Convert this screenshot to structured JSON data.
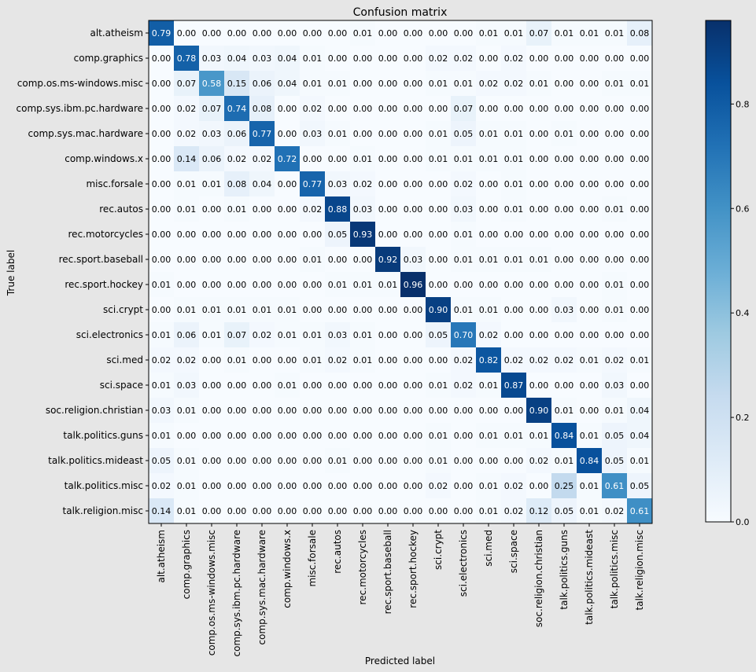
{
  "chart_data": {
    "type": "heatmap",
    "title": "Confusion matrix",
    "xlabel": "Predicted label",
    "ylabel": "True label",
    "labels": [
      "alt.atheism",
      "comp.graphics",
      "comp.os.ms-windows.misc",
      "comp.sys.ibm.pc.hardware",
      "comp.sys.mac.hardware",
      "comp.windows.x",
      "misc.forsale",
      "rec.autos",
      "rec.motorcycles",
      "rec.sport.baseball",
      "rec.sport.hockey",
      "sci.crypt",
      "sci.electronics",
      "sci.med",
      "sci.space",
      "soc.religion.christian",
      "talk.politics.guns",
      "talk.politics.mideast",
      "talk.politics.misc",
      "talk.religion.misc"
    ],
    "matrix": [
      [
        0.79,
        0.0,
        0.0,
        0.0,
        0.0,
        0.0,
        0.0,
        0.0,
        0.01,
        0.0,
        0.0,
        0.0,
        0.0,
        0.01,
        0.01,
        0.07,
        0.01,
        0.01,
        0.01,
        0.08
      ],
      [
        0.0,
        0.78,
        0.03,
        0.04,
        0.03,
        0.04,
        0.01,
        0.0,
        0.0,
        0.0,
        0.0,
        0.02,
        0.02,
        0.0,
        0.02,
        0.0,
        0.0,
        0.0,
        0.0,
        0.0
      ],
      [
        0.0,
        0.07,
        0.58,
        0.15,
        0.06,
        0.04,
        0.01,
        0.01,
        0.0,
        0.0,
        0.0,
        0.01,
        0.01,
        0.02,
        0.02,
        0.01,
        0.0,
        0.0,
        0.01,
        0.01
      ],
      [
        0.0,
        0.02,
        0.07,
        0.74,
        0.08,
        0.0,
        0.02,
        0.0,
        0.0,
        0.0,
        0.0,
        0.0,
        0.07,
        0.0,
        0.0,
        0.0,
        0.0,
        0.0,
        0.0,
        0.0
      ],
      [
        0.0,
        0.02,
        0.03,
        0.06,
        0.77,
        0.0,
        0.03,
        0.01,
        0.0,
        0.0,
        0.0,
        0.01,
        0.05,
        0.01,
        0.01,
        0.0,
        0.01,
        0.0,
        0.0,
        0.0
      ],
      [
        0.0,
        0.14,
        0.06,
        0.02,
        0.02,
        0.72,
        0.0,
        0.0,
        0.01,
        0.0,
        0.0,
        0.01,
        0.01,
        0.01,
        0.01,
        0.0,
        0.0,
        0.0,
        0.0,
        0.0
      ],
      [
        0.0,
        0.01,
        0.01,
        0.08,
        0.04,
        0.0,
        0.77,
        0.03,
        0.02,
        0.0,
        0.0,
        0.0,
        0.02,
        0.0,
        0.01,
        0.0,
        0.0,
        0.0,
        0.0,
        0.0
      ],
      [
        0.0,
        0.01,
        0.0,
        0.01,
        0.0,
        0.0,
        0.02,
        0.88,
        0.03,
        0.0,
        0.0,
        0.0,
        0.03,
        0.0,
        0.01,
        0.0,
        0.0,
        0.0,
        0.01,
        0.0
      ],
      [
        0.0,
        0.0,
        0.0,
        0.0,
        0.0,
        0.0,
        0.0,
        0.05,
        0.93,
        0.0,
        0.0,
        0.0,
        0.01,
        0.0,
        0.0,
        0.0,
        0.0,
        0.0,
        0.0,
        0.0
      ],
      [
        0.0,
        0.0,
        0.0,
        0.0,
        0.0,
        0.0,
        0.01,
        0.0,
        0.0,
        0.92,
        0.03,
        0.0,
        0.01,
        0.01,
        0.01,
        0.01,
        0.0,
        0.0,
        0.0,
        0.0
      ],
      [
        0.01,
        0.0,
        0.0,
        0.0,
        0.0,
        0.0,
        0.0,
        0.01,
        0.01,
        0.01,
        0.96,
        0.0,
        0.0,
        0.0,
        0.0,
        0.0,
        0.0,
        0.0,
        0.01,
        0.0
      ],
      [
        0.0,
        0.01,
        0.01,
        0.01,
        0.01,
        0.01,
        0.0,
        0.0,
        0.0,
        0.0,
        0.0,
        0.9,
        0.01,
        0.01,
        0.0,
        0.0,
        0.03,
        0.0,
        0.01,
        0.0
      ],
      [
        0.01,
        0.06,
        0.01,
        0.07,
        0.02,
        0.01,
        0.01,
        0.03,
        0.01,
        0.0,
        0.0,
        0.05,
        0.7,
        0.02,
        0.0,
        0.0,
        0.0,
        0.0,
        0.0,
        0.0
      ],
      [
        0.02,
        0.02,
        0.0,
        0.01,
        0.0,
        0.0,
        0.01,
        0.02,
        0.01,
        0.0,
        0.0,
        0.0,
        0.02,
        0.82,
        0.02,
        0.02,
        0.02,
        0.01,
        0.02,
        0.01
      ],
      [
        0.01,
        0.03,
        0.0,
        0.0,
        0.0,
        0.01,
        0.0,
        0.0,
        0.0,
        0.0,
        0.0,
        0.01,
        0.02,
        0.01,
        0.87,
        0.0,
        0.0,
        0.0,
        0.03,
        0.0
      ],
      [
        0.03,
        0.01,
        0.0,
        0.0,
        0.0,
        0.0,
        0.0,
        0.0,
        0.0,
        0.0,
        0.0,
        0.0,
        0.0,
        0.0,
        0.0,
        0.9,
        0.01,
        0.0,
        0.01,
        0.04
      ],
      [
        0.01,
        0.0,
        0.0,
        0.0,
        0.0,
        0.0,
        0.0,
        0.0,
        0.0,
        0.0,
        0.0,
        0.01,
        0.0,
        0.01,
        0.01,
        0.01,
        0.84,
        0.01,
        0.05,
        0.04
      ],
      [
        0.05,
        0.01,
        0.0,
        0.0,
        0.0,
        0.0,
        0.0,
        0.01,
        0.0,
        0.0,
        0.0,
        0.01,
        0.0,
        0.0,
        0.0,
        0.02,
        0.01,
        0.84,
        0.05,
        0.01
      ],
      [
        0.02,
        0.01,
        0.0,
        0.0,
        0.0,
        0.0,
        0.0,
        0.0,
        0.0,
        0.0,
        0.0,
        0.02,
        0.0,
        0.01,
        0.02,
        0.0,
        0.25,
        0.01,
        0.61,
        0.05
      ],
      [
        0.14,
        0.01,
        0.0,
        0.0,
        0.0,
        0.0,
        0.0,
        0.0,
        0.0,
        0.0,
        0.0,
        0.0,
        0.0,
        0.01,
        0.02,
        0.12,
        0.05,
        0.01,
        0.02,
        0.61
      ]
    ],
    "colormap": [
      "#f7fbff",
      "#deebf7",
      "#c6dbef",
      "#9ecae1",
      "#6baed6",
      "#4292c6",
      "#2171b5",
      "#08519c",
      "#08306b"
    ],
    "colorbar": {
      "min": 0.0,
      "max": 0.96,
      "ticks": [
        0.0,
        0.2,
        0.4,
        0.6,
        0.8
      ],
      "tick_labels": [
        "0.0",
        "0.2",
        "0.4",
        "0.6",
        "0.8"
      ]
    },
    "text_threshold": 0.48
  }
}
